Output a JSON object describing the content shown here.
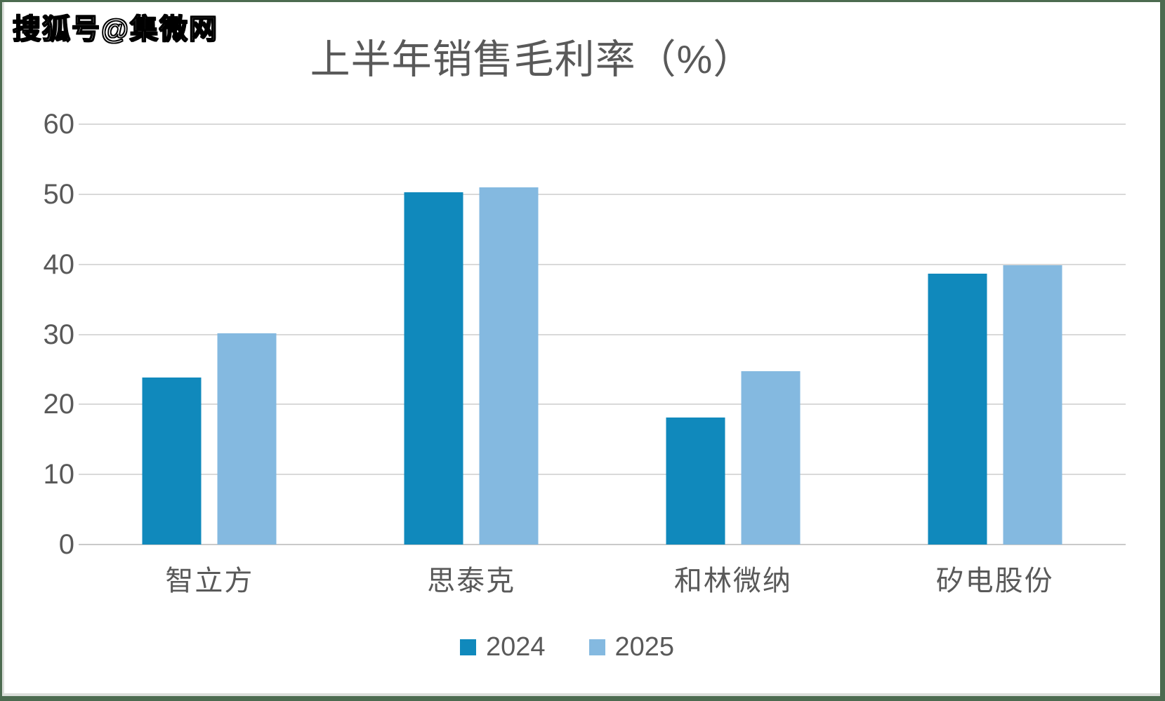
{
  "watermark": "搜狐号@集微网",
  "frame_border_color": "#4c6b50",
  "chart_data": {
    "type": "bar",
    "title": "上半年销售毛利率（%）",
    "categories": [
      "智立方",
      "思泰克",
      "和林微纳",
      "矽电股份"
    ],
    "series": [
      {
        "name": "2024",
        "color": "#1089bc",
        "values": [
          23.8,
          50.3,
          18.1,
          38.7
        ]
      },
      {
        "name": "2025",
        "color": "#84b9e0",
        "values": [
          30.2,
          51.0,
          24.7,
          39.9
        ]
      }
    ],
    "ylim": [
      0,
      60
    ],
    "yticks": [
      0,
      10,
      20,
      30,
      40,
      50,
      60
    ],
    "grid": true,
    "legend_position": "bottom",
    "text_color": "#595959",
    "gridline_color": "#d9d9d9"
  }
}
